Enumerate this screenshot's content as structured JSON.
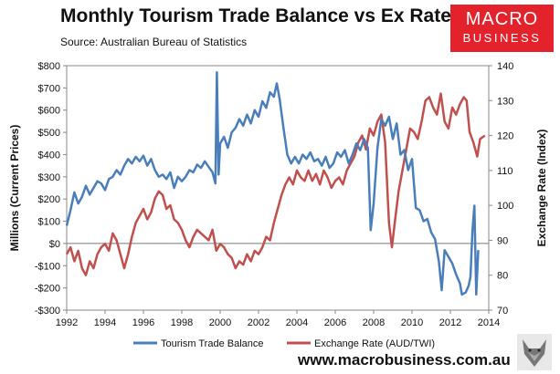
{
  "title": "Monthly Tourism Trade Balance vs Ex Rate",
  "subtitle": "Source: Australian Bureau of Statistics",
  "logo": {
    "line1": "MACRO",
    "line2": "BUSINESS"
  },
  "website": "www.macrobusiness.com.au",
  "chart_data": {
    "type": "line",
    "title": "Monthly Tourism Trade Balance vs Ex Rate",
    "xlabel": "",
    "ylabel_left": "Millions (Current Prices)",
    "ylabel_right": "Exchange Rate (Index)",
    "xlim": [
      1992,
      2014
    ],
    "ylim_left": [
      -300,
      800
    ],
    "ylim_right": [
      70,
      140
    ],
    "x_ticks": [
      "1992",
      "1994",
      "1996",
      "1998",
      "2000",
      "2002",
      "2004",
      "2006",
      "2008",
      "2010",
      "2012",
      "2014"
    ],
    "y_left_ticks": [
      {
        "v": 800,
        "label": "$800"
      },
      {
        "v": 700,
        "label": "$700"
      },
      {
        "v": 600,
        "label": "$600"
      },
      {
        "v": 500,
        "label": "$500"
      },
      {
        "v": 400,
        "label": "$400"
      },
      {
        "v": 300,
        "label": "$300"
      },
      {
        "v": 200,
        "label": "$200"
      },
      {
        "v": 100,
        "label": "$100"
      },
      {
        "v": 0,
        "label": "$0"
      },
      {
        "v": -100,
        "label": "-$100"
      },
      {
        "v": -200,
        "label": "-$200"
      },
      {
        "v": -300,
        "label": "-$300"
      }
    ],
    "y_right_ticks": [
      {
        "v": 140,
        "label": "140"
      },
      {
        "v": 130,
        "label": "130"
      },
      {
        "v": 120,
        "label": "120"
      },
      {
        "v": 110,
        "label": "110"
      },
      {
        "v": 100,
        "label": "100"
      },
      {
        "v": 90,
        "label": "90"
      },
      {
        "v": 80,
        "label": "80"
      },
      {
        "v": 70,
        "label": "70"
      }
    ],
    "series": [
      {
        "name": "Tourism Trade Balance",
        "axis": "left",
        "color": "#4a7ebb",
        "points": [
          [
            1992.0,
            80
          ],
          [
            1992.2,
            150
          ],
          [
            1992.4,
            230
          ],
          [
            1992.6,
            180
          ],
          [
            1992.8,
            210
          ],
          [
            1993.0,
            260
          ],
          [
            1993.2,
            220
          ],
          [
            1993.4,
            250
          ],
          [
            1993.6,
            280
          ],
          [
            1993.8,
            270
          ],
          [
            1994.0,
            240
          ],
          [
            1994.2,
            290
          ],
          [
            1994.4,
            300
          ],
          [
            1994.6,
            330
          ],
          [
            1994.8,
            310
          ],
          [
            1995.0,
            350
          ],
          [
            1995.2,
            380
          ],
          [
            1995.4,
            360
          ],
          [
            1995.6,
            390
          ],
          [
            1995.8,
            370
          ],
          [
            1996.0,
            395
          ],
          [
            1996.2,
            350
          ],
          [
            1996.4,
            380
          ],
          [
            1996.6,
            330
          ],
          [
            1996.8,
            300
          ],
          [
            1997.0,
            310
          ],
          [
            1997.2,
            290
          ],
          [
            1997.4,
            320
          ],
          [
            1997.6,
            250
          ],
          [
            1997.8,
            300
          ],
          [
            1998.0,
            280
          ],
          [
            1998.2,
            300
          ],
          [
            1998.4,
            330
          ],
          [
            1998.6,
            320
          ],
          [
            1998.8,
            355
          ],
          [
            1999.0,
            340
          ],
          [
            1999.2,
            370
          ],
          [
            1999.4,
            345
          ],
          [
            1999.6,
            320
          ],
          [
            1999.75,
            270
          ],
          [
            1999.83,
            770
          ],
          [
            1999.92,
            310
          ],
          [
            2000.0,
            450
          ],
          [
            2000.2,
            480
          ],
          [
            2000.4,
            430
          ],
          [
            2000.6,
            500
          ],
          [
            2000.8,
            520
          ],
          [
            2001.0,
            560
          ],
          [
            2001.2,
            530
          ],
          [
            2001.4,
            580
          ],
          [
            2001.6,
            540
          ],
          [
            2001.8,
            600
          ],
          [
            2002.0,
            570
          ],
          [
            2002.2,
            640
          ],
          [
            2002.4,
            610
          ],
          [
            2002.6,
            680
          ],
          [
            2002.8,
            660
          ],
          [
            2002.95,
            720
          ],
          [
            2003.1,
            650
          ],
          [
            2003.3,
            520
          ],
          [
            2003.5,
            400
          ],
          [
            2003.7,
            360
          ],
          [
            2003.9,
            390
          ],
          [
            2004.1,
            360
          ],
          [
            2004.3,
            400
          ],
          [
            2004.5,
            380
          ],
          [
            2004.7,
            410
          ],
          [
            2004.9,
            370
          ],
          [
            2005.1,
            380
          ],
          [
            2005.3,
            350
          ],
          [
            2005.5,
            390
          ],
          [
            2005.7,
            340
          ],
          [
            2005.9,
            360
          ],
          [
            2006.1,
            410
          ],
          [
            2006.3,
            390
          ],
          [
            2006.5,
            420
          ],
          [
            2006.7,
            360
          ],
          [
            2006.9,
            400
          ],
          [
            2007.1,
            450
          ],
          [
            2007.3,
            420
          ],
          [
            2007.5,
            470
          ],
          [
            2007.7,
            430
          ],
          [
            2007.85,
            60
          ],
          [
            2008.0,
            180
          ],
          [
            2008.2,
            430
          ],
          [
            2008.4,
            560
          ],
          [
            2008.6,
            530
          ],
          [
            2008.8,
            570
          ],
          [
            2009.0,
            470
          ],
          [
            2009.2,
            540
          ],
          [
            2009.4,
            400
          ],
          [
            2009.6,
            420
          ],
          [
            2009.8,
            330
          ],
          [
            2010.0,
            380
          ],
          [
            2010.2,
            160
          ],
          [
            2010.4,
            150
          ],
          [
            2010.6,
            100
          ],
          [
            2010.8,
            110
          ],
          [
            2011.0,
            50
          ],
          [
            2011.2,
            20
          ],
          [
            2011.4,
            -80
          ],
          [
            2011.55,
            -210
          ],
          [
            2011.7,
            -30
          ],
          [
            2011.9,
            -60
          ],
          [
            2012.1,
            -90
          ],
          [
            2012.3,
            -140
          ],
          [
            2012.5,
            -180
          ],
          [
            2012.6,
            -230
          ],
          [
            2012.8,
            -220
          ],
          [
            2012.95,
            -190
          ],
          [
            2013.05,
            -150
          ],
          [
            2013.15,
            60
          ],
          [
            2013.25,
            170
          ],
          [
            2013.35,
            -230
          ],
          [
            2013.45,
            -30
          ]
        ]
      },
      {
        "name": "Exchange Rate (AUD/TWI)",
        "axis": "right",
        "color": "#c0504d",
        "points": [
          [
            1992.0,
            86
          ],
          [
            1992.2,
            88
          ],
          [
            1992.4,
            84
          ],
          [
            1992.6,
            87
          ],
          [
            1992.8,
            82
          ],
          [
            1993.0,
            80
          ],
          [
            1993.2,
            84
          ],
          [
            1993.4,
            82
          ],
          [
            1993.6,
            86
          ],
          [
            1993.8,
            88
          ],
          [
            1994.0,
            89
          ],
          [
            1994.2,
            87
          ],
          [
            1994.4,
            92
          ],
          [
            1994.6,
            90
          ],
          [
            1994.8,
            86
          ],
          [
            1995.0,
            82
          ],
          [
            1995.2,
            86
          ],
          [
            1995.4,
            91
          ],
          [
            1995.6,
            95
          ],
          [
            1995.8,
            97
          ],
          [
            1996.0,
            99
          ],
          [
            1996.2,
            96
          ],
          [
            1996.4,
            98
          ],
          [
            1996.6,
            102
          ],
          [
            1996.8,
            104
          ],
          [
            1997.0,
            103
          ],
          [
            1997.2,
            99
          ],
          [
            1997.4,
            100
          ],
          [
            1997.6,
            96
          ],
          [
            1997.8,
            95
          ],
          [
            1998.0,
            93
          ],
          [
            1998.2,
            90
          ],
          [
            1998.4,
            88
          ],
          [
            1998.6,
            91
          ],
          [
            1998.8,
            93
          ],
          [
            1999.0,
            92
          ],
          [
            1999.2,
            91
          ],
          [
            1999.4,
            90
          ],
          [
            1999.6,
            93
          ],
          [
            1999.8,
            87
          ],
          [
            2000.0,
            89
          ],
          [
            2000.2,
            88
          ],
          [
            2000.4,
            86
          ],
          [
            2000.6,
            85
          ],
          [
            2000.8,
            82
          ],
          [
            2001.0,
            84
          ],
          [
            2001.2,
            83
          ],
          [
            2001.4,
            86
          ],
          [
            2001.6,
            84
          ],
          [
            2001.8,
            87
          ],
          [
            2002.0,
            86
          ],
          [
            2002.2,
            88
          ],
          [
            2002.4,
            91
          ],
          [
            2002.6,
            90
          ],
          [
            2002.8,
            95
          ],
          [
            2003.0,
            99
          ],
          [
            2003.2,
            103
          ],
          [
            2003.4,
            106
          ],
          [
            2003.6,
            108
          ],
          [
            2003.8,
            106
          ],
          [
            2004.0,
            110
          ],
          [
            2004.2,
            108
          ],
          [
            2004.4,
            107
          ],
          [
            2004.6,
            110
          ],
          [
            2004.8,
            107
          ],
          [
            2005.0,
            109
          ],
          [
            2005.2,
            106
          ],
          [
            2005.4,
            110
          ],
          [
            2005.6,
            108
          ],
          [
            2005.8,
            105
          ],
          [
            2006.0,
            107
          ],
          [
            2006.2,
            108
          ],
          [
            2006.4,
            106
          ],
          [
            2006.6,
            110
          ],
          [
            2006.8,
            112
          ],
          [
            2007.0,
            114
          ],
          [
            2007.2,
            118
          ],
          [
            2007.4,
            120
          ],
          [
            2007.6,
            116
          ],
          [
            2007.8,
            122
          ],
          [
            2008.0,
            120
          ],
          [
            2008.2,
            124
          ],
          [
            2008.4,
            126
          ],
          [
            2008.6,
            118
          ],
          [
            2008.8,
            95
          ],
          [
            2008.95,
            88
          ],
          [
            2009.1,
            95
          ],
          [
            2009.3,
            104
          ],
          [
            2009.5,
            110
          ],
          [
            2009.7,
            116
          ],
          [
            2009.9,
            122
          ],
          [
            2010.1,
            121
          ],
          [
            2010.3,
            119
          ],
          [
            2010.5,
            124
          ],
          [
            2010.7,
            130
          ],
          [
            2010.9,
            131
          ],
          [
            2011.1,
            128
          ],
          [
            2011.3,
            126
          ],
          [
            2011.5,
            132
          ],
          [
            2011.7,
            124
          ],
          [
            2011.9,
            122
          ],
          [
            2012.1,
            128
          ],
          [
            2012.3,
            126
          ],
          [
            2012.5,
            129
          ],
          [
            2012.7,
            131
          ],
          [
            2012.85,
            130
          ],
          [
            2013.0,
            121
          ],
          [
            2013.2,
            118
          ],
          [
            2013.4,
            114
          ],
          [
            2013.55,
            119
          ],
          [
            2013.8,
            120
          ]
        ]
      }
    ]
  }
}
